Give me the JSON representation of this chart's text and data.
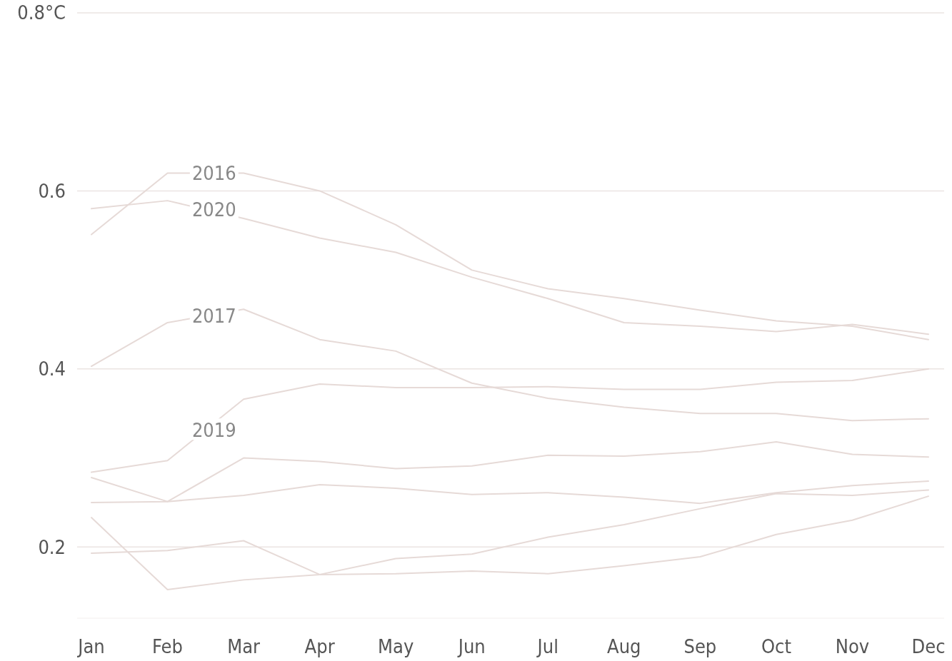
{
  "chart_data": {
    "type": "line",
    "categories": [
      "Jan",
      "Feb",
      "Mar",
      "Apr",
      "May",
      "Jun",
      "Jul",
      "Aug",
      "Sep",
      "Oct",
      "Nov",
      "Dec"
    ],
    "ylim": [
      0.12,
      0.8
    ],
    "yticks": [
      {
        "value": 0.8,
        "label": "0.8°C"
      },
      0.6,
      0.4,
      0.2
    ],
    "grid": "y",
    "marker": "none",
    "line_style": "solid",
    "series": [
      {
        "name": "2016",
        "color": "#e6dad7",
        "values": [
          0.551,
          0.62,
          0.62,
          0.6,
          0.562,
          0.511,
          0.49,
          0.479,
          0.466,
          0.454,
          0.448,
          0.433
        ]
      },
      {
        "name": "2020",
        "color": "#e6dad7",
        "values": [
          0.58,
          0.589,
          0.569,
          0.547,
          0.531,
          0.503,
          0.479,
          0.452,
          0.448,
          0.442,
          0.45,
          0.439
        ]
      },
      {
        "name": "2017",
        "color": "#e6dad7",
        "values": [
          0.403,
          0.452,
          0.467,
          0.433,
          0.42,
          0.384,
          0.367,
          0.357,
          0.35,
          0.35,
          0.342,
          0.344
        ]
      },
      {
        "name": "2019",
        "color": "#e6dad7",
        "values": [
          0.284,
          0.297,
          0.366,
          0.383,
          0.379,
          0.379,
          0.38,
          0.377,
          0.377,
          0.385,
          0.387,
          0.4
        ]
      },
      {
        "color": "#e6dad7",
        "values": [
          0.278,
          0.251,
          0.3,
          0.296,
          0.288,
          0.291,
          0.303,
          0.302,
          0.307,
          0.318,
          0.304,
          0.301
        ]
      },
      {
        "color": "#e6dad7",
        "values": [
          0.25,
          0.251,
          0.258,
          0.27,
          0.266,
          0.259,
          0.261,
          0.256,
          0.249,
          0.261,
          0.269,
          0.274
        ]
      },
      {
        "color": "#e6dad7",
        "values": [
          0.233,
          0.152,
          0.163,
          0.169,
          0.17,
          0.173,
          0.17,
          0.179,
          0.189,
          0.214,
          0.23,
          0.257
        ]
      },
      {
        "color": "#e6dad7",
        "values": [
          0.193,
          0.196,
          0.207,
          0.169,
          0.187,
          0.192,
          0.211,
          0.225,
          0.243,
          0.26,
          0.258,
          0.264
        ]
      }
    ]
  }
}
